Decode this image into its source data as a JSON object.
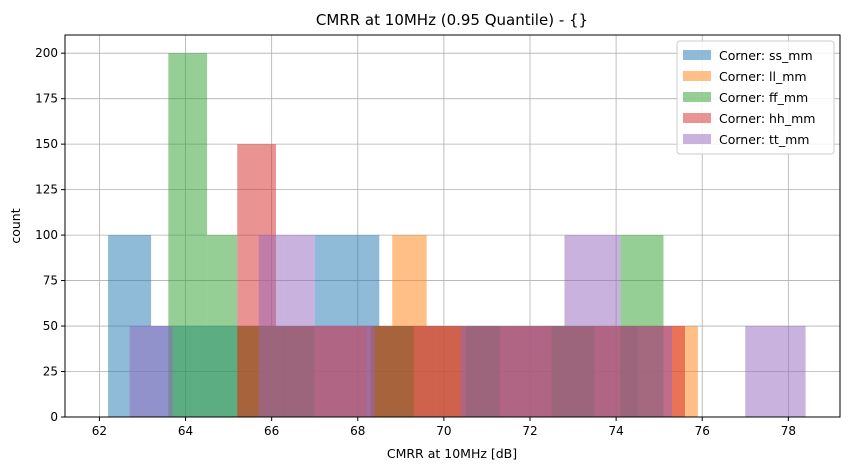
{
  "chart_data": {
    "type": "bar",
    "title": "CMRR at 10MHz (0.95 Quantile) - {}",
    "xlabel": "CMRR at 10MHz [dB]",
    "ylabel": "count",
    "xlim": [
      61.2,
      79.2
    ],
    "ylim": [
      0,
      210
    ],
    "xticks": [
      62,
      64,
      66,
      68,
      70,
      72,
      74,
      76,
      78
    ],
    "yticks": [
      0,
      25,
      50,
      75,
      100,
      125,
      150,
      175,
      200
    ],
    "grid": true,
    "legend_position": "top-right",
    "series": [
      {
        "name": "Corner: ss_mm",
        "color": "#1f77b4",
        "bins": [
          [
            62.2,
            63.2,
            100
          ],
          [
            63.2,
            64.2,
            50
          ],
          [
            64.2,
            65.2,
            50
          ],
          [
            65.2,
            66.2,
            50
          ],
          [
            66.2,
            67.0,
            50
          ],
          [
            67.0,
            68.5,
            100
          ],
          [
            68.5,
            70.0,
            50
          ],
          [
            70.0,
            71.5,
            50
          ],
          [
            71.5,
            73.0,
            50
          ],
          [
            73.0,
            74.5,
            50
          ],
          [
            74.5,
            76.0,
            0
          ]
        ]
      },
      {
        "name": "Corner: ll_mm",
        "color": "#ff7f0e",
        "bins": [
          [
            65.2,
            66.0,
            50
          ],
          [
            66.0,
            67.0,
            50
          ],
          [
            67.0,
            68.2,
            50
          ],
          [
            68.3,
            68.8,
            50
          ],
          [
            68.8,
            69.6,
            100
          ],
          [
            69.6,
            70.5,
            50
          ],
          [
            70.5,
            71.6,
            50
          ],
          [
            71.6,
            73.0,
            50
          ],
          [
            73.0,
            74.5,
            50
          ],
          [
            74.5,
            75.9,
            50
          ]
        ]
      },
      {
        "name": "Corner: ff_mm",
        "color": "#2ca02c",
        "bins": [
          [
            63.6,
            64.5,
            200
          ],
          [
            64.5,
            65.2,
            100
          ],
          [
            65.2,
            66.1,
            50
          ],
          [
            66.1,
            67.0,
            50
          ],
          [
            68.3,
            69.3,
            50
          ],
          [
            70.5,
            71.3,
            50
          ],
          [
            72.5,
            73.5,
            50
          ],
          [
            74.1,
            75.1,
            100
          ]
        ]
      },
      {
        "name": "Corner: hh_mm",
        "color": "#d62728",
        "bins": [
          [
            65.2,
            66.1,
            150
          ],
          [
            66.1,
            67.0,
            50
          ],
          [
            67.0,
            68.5,
            50
          ],
          [
            68.5,
            69.8,
            50
          ],
          [
            69.8,
            71.4,
            50
          ],
          [
            71.4,
            72.7,
            50
          ],
          [
            72.7,
            73.9,
            50
          ],
          [
            73.9,
            75.6,
            50
          ]
        ]
      },
      {
        "name": "Corner: tt_mm",
        "color": "#9467bd",
        "bins": [
          [
            62.7,
            63.7,
            50
          ],
          [
            65.7,
            66.3,
            100
          ],
          [
            66.3,
            67.0,
            100
          ],
          [
            67.0,
            68.4,
            50
          ],
          [
            70.4,
            71.6,
            50
          ],
          [
            71.6,
            72.8,
            50
          ],
          [
            72.8,
            74.1,
            100
          ],
          [
            74.1,
            75.3,
            50
          ],
          [
            77.0,
            78.4,
            50
          ]
        ]
      }
    ]
  }
}
